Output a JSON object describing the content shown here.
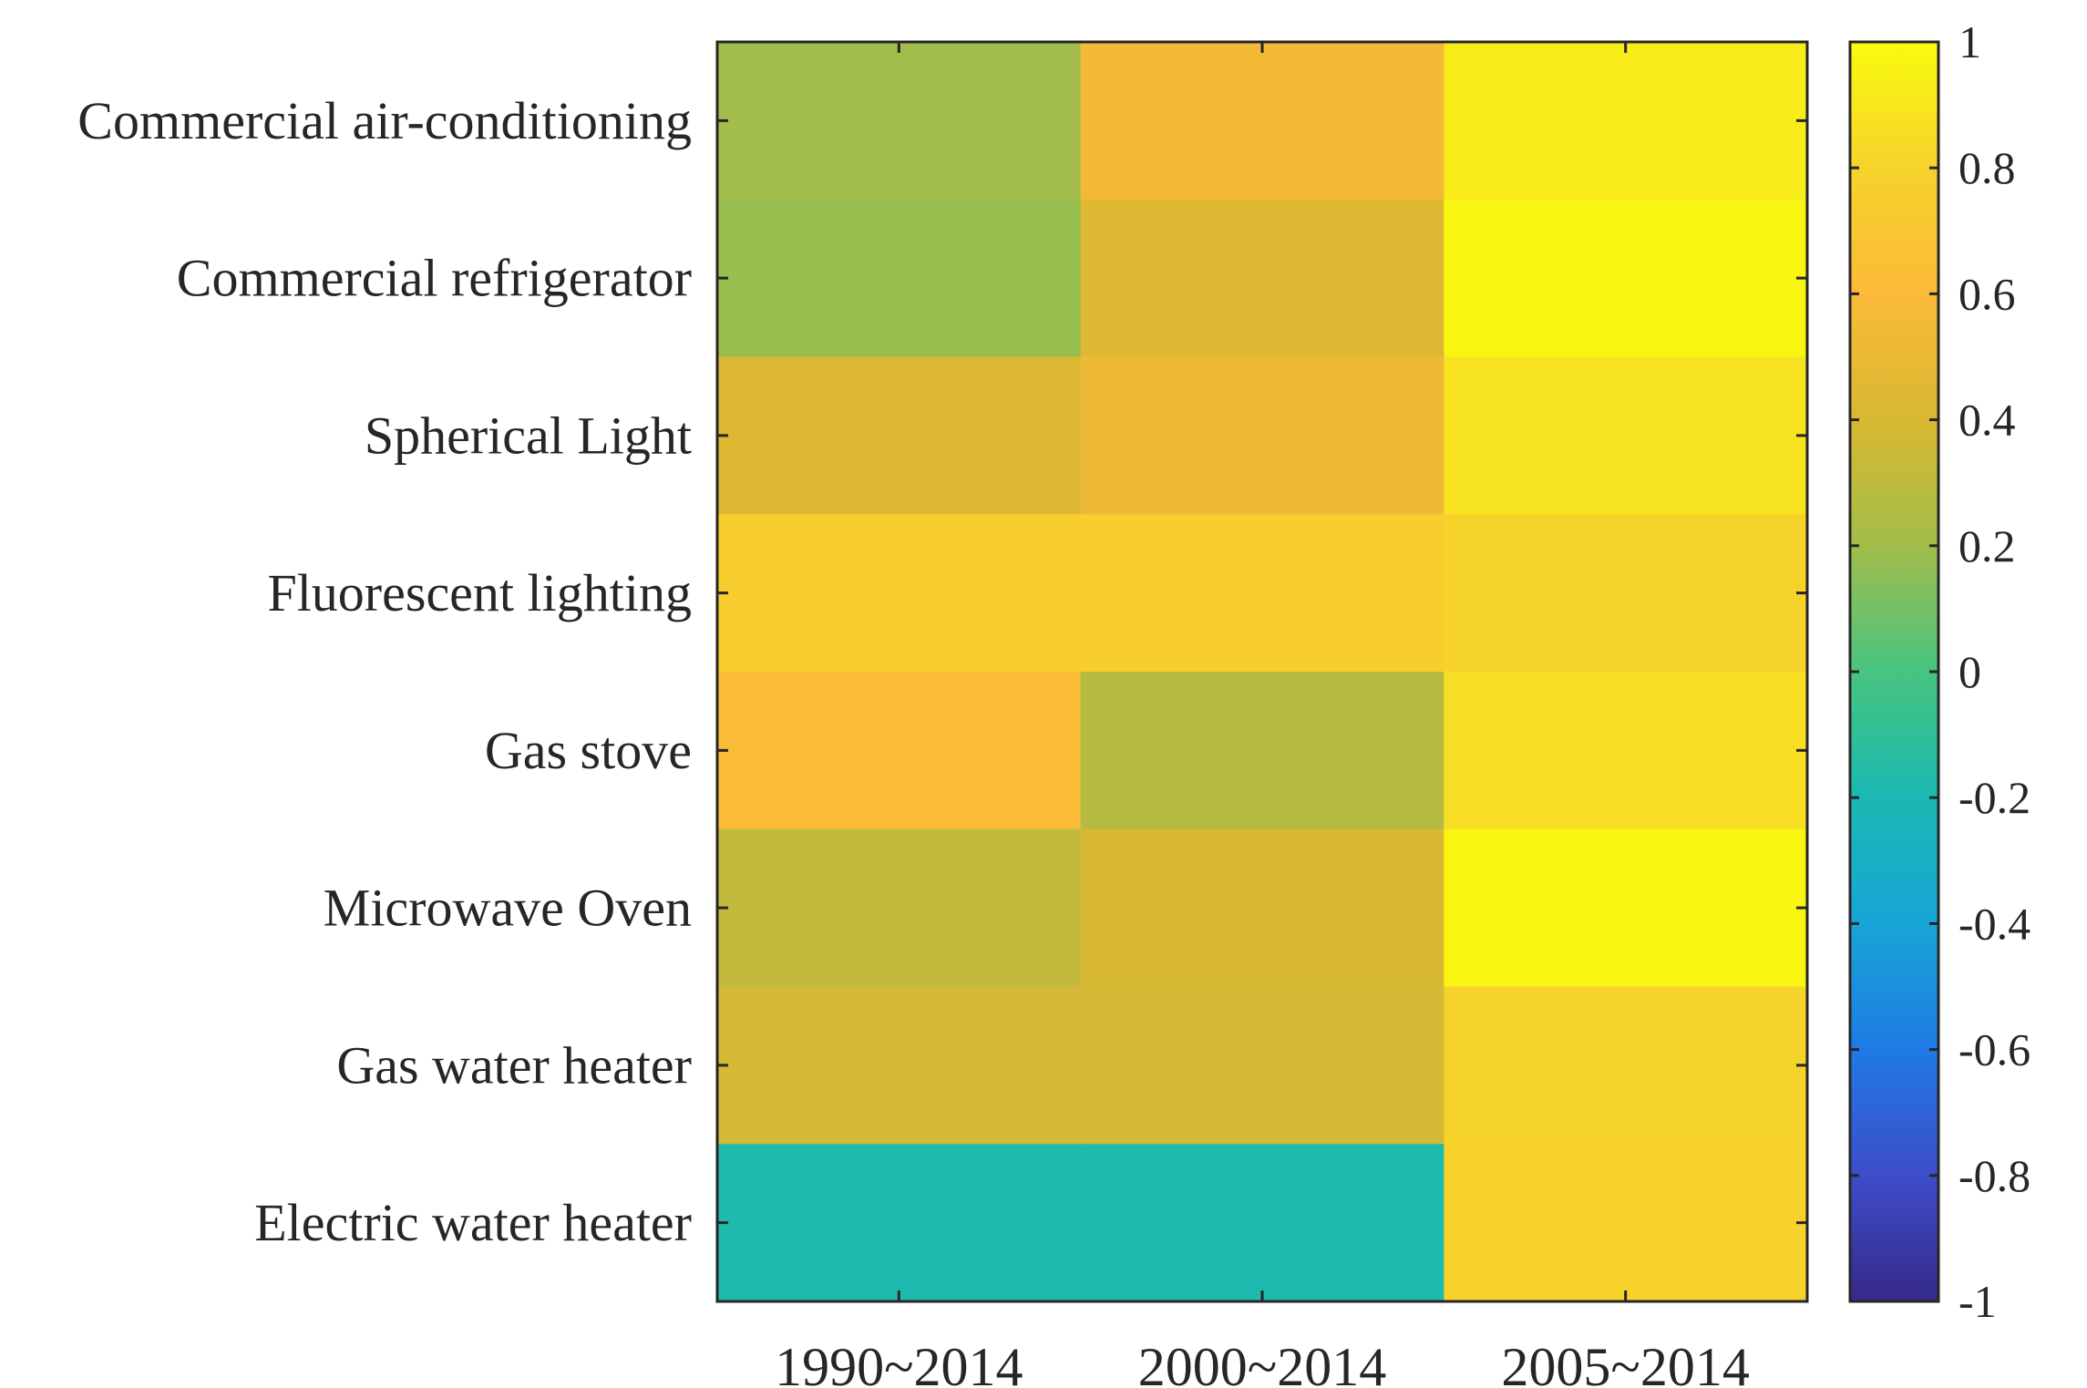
{
  "chart_data": {
    "type": "heatmap",
    "title": "",
    "xlabel": "",
    "ylabel": "",
    "columns": [
      "1990~2014",
      "2000~2014",
      "2005~2014"
    ],
    "rows": [
      "Commercial air-conditioning",
      "Commercial refrigerator",
      "Spherical Light",
      "Fluorescent lighting",
      "Gas stove",
      "Microwave Oven",
      "Gas water heater",
      "Electric water heater"
    ],
    "values": [
      [
        0.2,
        0.56,
        0.92
      ],
      [
        0.18,
        0.42,
        0.97
      ],
      [
        0.43,
        0.52,
        0.88
      ],
      [
        0.76,
        0.76,
        0.8
      ],
      [
        0.62,
        0.27,
        0.85
      ],
      [
        0.32,
        0.4,
        0.97
      ],
      [
        0.38,
        0.38,
        0.8
      ],
      [
        -0.18,
        -0.18,
        0.78
      ]
    ],
    "colorbar": {
      "range": [
        -1,
        1
      ],
      "ticks": [
        -1,
        -0.8,
        -0.6,
        -0.4,
        -0.2,
        0,
        0.2,
        0.4,
        0.6,
        0.8,
        1
      ],
      "tick_labels": [
        "-1",
        "-0.8",
        "-0.6",
        "-0.4",
        "-0.2",
        "0",
        "0.2",
        "0.4",
        "0.6",
        "0.8",
        "1"
      ],
      "colormap": "parula",
      "colormap_stops": [
        "#352a87",
        "#3e4dc9",
        "#1f7ae5",
        "#18a5d7",
        "#1ab9b3",
        "#47c47f",
        "#a2bd4b",
        "#d8b832",
        "#fbba38",
        "#f6d32b",
        "#f9fb0e"
      ]
    },
    "grid": false
  }
}
